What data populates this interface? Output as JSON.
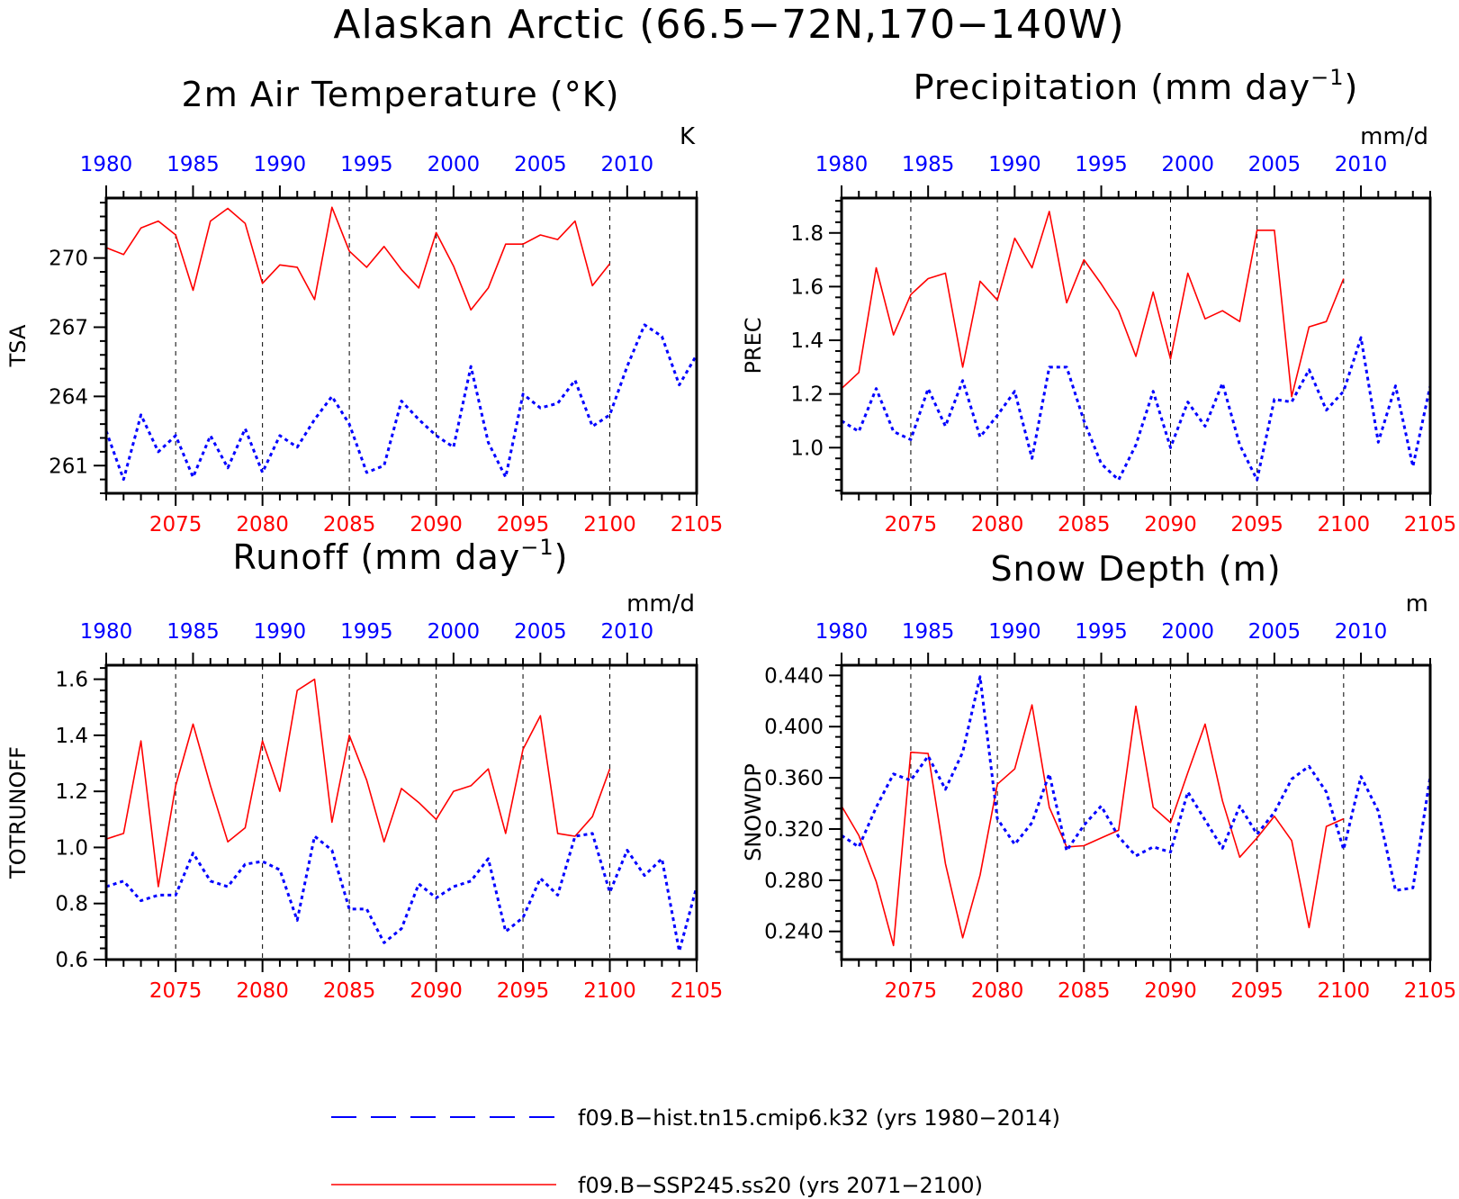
{
  "title": "Alaskan Arctic (66.5−72N,170−140W)",
  "legend": [
    {
      "label": "f09.B−hist.tn15.cmip6.k32 (yrs 1980−2014)",
      "color": "#0000ff",
      "style": "dashed"
    },
    {
      "label": "f09.B−SSP245.ss20 (yrs 2071−2100)",
      "color": "#ff0000",
      "style": "solid"
    }
  ],
  "colors": {
    "hist": "#0000ff",
    "ssp": "#ff0000",
    "axis": "#000000"
  },
  "chart_data": [
    {
      "type": "line",
      "title_main": "2m Air Temperature (°K)",
      "units": "K",
      "ylabel": "TSA",
      "ylim": [
        259.8,
        272.6
      ],
      "yticks": [
        261,
        264,
        267,
        270
      ],
      "ytick_labels": [
        "261",
        "264",
        "267",
        "270"
      ],
      "bottom_axis": {
        "range": [
          2071,
          2105
        ],
        "ticks": [
          2075,
          2080,
          2085,
          2090,
          2095,
          2100,
          2105
        ]
      },
      "top_axis": {
        "range": [
          1980,
          2014
        ],
        "ticks": [
          1980,
          1985,
          1990,
          1995,
          2000,
          2005,
          2010
        ]
      },
      "vlines": [
        2075,
        2080,
        2085,
        2090,
        2095,
        2100
      ],
      "series": [
        {
          "name": "f09.B−SSP245.ss20 (yrs 2071−2100)",
          "x_start": 2071,
          "color": "#ff0000",
          "values": [
            270.45,
            270.15,
            271.3,
            271.6,
            271.0,
            268.6,
            271.6,
            272.15,
            271.5,
            268.9,
            269.7,
            269.6,
            268.2,
            272.2,
            270.3,
            269.6,
            270.5,
            269.5,
            268.7,
            271.1,
            269.65,
            267.75,
            268.7,
            270.6,
            270.6,
            271.0,
            270.8,
            271.6,
            268.8,
            269.75
          ]
        },
        {
          "name": "f09.B−hist.tn15.cmip6.k32 (yrs 1980−2014)",
          "x_start": 2071,
          "color": "#0000ff",
          "values": [
            262.5,
            260.4,
            263.2,
            261.6,
            262.3,
            260.5,
            262.3,
            260.9,
            262.6,
            260.7,
            262.3,
            261.8,
            263.0,
            264.0,
            262.8,
            260.7,
            261.0,
            263.8,
            263.0,
            262.3,
            261.8,
            265.3,
            262.0,
            260.5,
            264.1,
            263.5,
            263.7,
            264.7,
            262.7,
            263.2,
            265.3,
            267.1,
            266.6,
            264.5,
            265.8
          ]
        }
      ]
    },
    {
      "type": "line",
      "title_main": "Precipitation (mm day",
      "title_sup": "−1",
      "title_end": ")",
      "units": "mm/d",
      "ylabel": "PREC",
      "ylim": [
        0.83,
        1.93
      ],
      "yticks": [
        1.0,
        1.2,
        1.4,
        1.6,
        1.8
      ],
      "ytick_labels": [
        "1.0",
        "1.2",
        "1.4",
        "1.6",
        "1.8"
      ],
      "bottom_axis": {
        "range": [
          2071,
          2105
        ],
        "ticks": [
          2075,
          2080,
          2085,
          2090,
          2095,
          2100,
          2105
        ]
      },
      "top_axis": {
        "range": [
          1980,
          2014
        ],
        "ticks": [
          1980,
          1985,
          1990,
          1995,
          2000,
          2005,
          2010
        ]
      },
      "vlines": [
        2075,
        2080,
        2085,
        2090,
        2095,
        2100
      ],
      "series": [
        {
          "name": "f09.B−SSP245.ss20 (yrs 2071−2100)",
          "x_start": 2071,
          "color": "#ff0000",
          "values": [
            1.22,
            1.28,
            1.67,
            1.42,
            1.57,
            1.63,
            1.65,
            1.3,
            1.62,
            1.55,
            1.78,
            1.67,
            1.88,
            1.54,
            1.7,
            1.61,
            1.51,
            1.34,
            1.58,
            1.33,
            1.65,
            1.48,
            1.51,
            1.47,
            1.81,
            1.81,
            1.19,
            1.45,
            1.47,
            1.63
          ]
        },
        {
          "name": "f09.B−hist.tn15.cmip6.k32 (yrs 1980−2014)",
          "x_start": 2071,
          "color": "#0000ff",
          "values": [
            1.1,
            1.06,
            1.22,
            1.06,
            1.03,
            1.22,
            1.08,
            1.25,
            1.04,
            1.12,
            1.21,
            0.96,
            1.3,
            1.3,
            1.1,
            0.94,
            0.88,
            1.01,
            1.21,
            1.0,
            1.17,
            1.08,
            1.24,
            1.01,
            0.88,
            1.18,
            1.17,
            1.29,
            1.14,
            1.21,
            1.41,
            1.02,
            1.23,
            0.93,
            1.23
          ]
        }
      ]
    },
    {
      "type": "line",
      "title_main": "Runoff (mm day",
      "title_sup": "−1",
      "title_end": ")",
      "units": "mm/d",
      "ylabel": "TOTRUNOFF",
      "ylim": [
        0.6,
        1.65
      ],
      "yticks": [
        0.6,
        0.8,
        1.0,
        1.2,
        1.4,
        1.6
      ],
      "ytick_labels": [
        "0.6",
        "0.8",
        "1.0",
        "1.2",
        "1.4",
        "1.6"
      ],
      "bottom_axis": {
        "range": [
          2071,
          2105
        ],
        "ticks": [
          2075,
          2080,
          2085,
          2090,
          2095,
          2100,
          2105
        ]
      },
      "top_axis": {
        "range": [
          1980,
          2014
        ],
        "ticks": [
          1980,
          1985,
          1990,
          1995,
          2000,
          2005,
          2010
        ]
      },
      "vlines": [
        2075,
        2080,
        2085,
        2090,
        2095,
        2100
      ],
      "series": [
        {
          "name": "f09.B−SSP245.ss20 (yrs 2071−2100)",
          "x_start": 2071,
          "color": "#ff0000",
          "values": [
            1.03,
            1.05,
            1.38,
            0.86,
            1.22,
            1.44,
            1.22,
            1.02,
            1.07,
            1.38,
            1.2,
            1.56,
            1.6,
            1.09,
            1.4,
            1.24,
            1.02,
            1.21,
            1.16,
            1.1,
            1.2,
            1.22,
            1.28,
            1.05,
            1.35,
            1.47,
            1.05,
            1.04,
            1.11,
            1.28
          ]
        },
        {
          "name": "f09.B−hist.tn15.cmip6.k32 (yrs 1980−2014)",
          "x_start": 2071,
          "color": "#0000ff",
          "values": [
            0.86,
            0.88,
            0.81,
            0.83,
            0.83,
            0.98,
            0.88,
            0.86,
            0.94,
            0.95,
            0.92,
            0.74,
            1.04,
            0.99,
            0.78,
            0.78,
            0.66,
            0.71,
            0.87,
            0.82,
            0.86,
            0.88,
            0.96,
            0.7,
            0.75,
            0.89,
            0.83,
            1.04,
            1.05,
            0.84,
            0.99,
            0.9,
            0.96,
            0.63,
            0.86
          ]
        }
      ]
    },
    {
      "type": "line",
      "title_main": "Snow Depth (m)",
      "units": "m",
      "ylabel": "SNOWDP",
      "ylim": [
        0.218,
        0.448
      ],
      "yticks": [
        0.24,
        0.28,
        0.32,
        0.36,
        0.4,
        0.44
      ],
      "ytick_labels": [
        "0.240",
        "0.280",
        "0.320",
        "0.360",
        "0.400",
        "0.440"
      ],
      "bottom_axis": {
        "range": [
          2071,
          2105
        ],
        "ticks": [
          2075,
          2080,
          2085,
          2090,
          2095,
          2100,
          2105
        ]
      },
      "top_axis": {
        "range": [
          1980,
          2014
        ],
        "ticks": [
          1980,
          1985,
          1990,
          1995,
          2000,
          2005,
          2010
        ]
      },
      "vlines": [
        2075,
        2080,
        2085,
        2090,
        2095,
        2100
      ],
      "series": [
        {
          "name": "f09.B−SSP245.ss20 (yrs 2071−2100)",
          "x_start": 2071,
          "color": "#ff0000",
          "values": [
            0.338,
            0.315,
            0.279,
            0.229,
            0.38,
            0.379,
            0.293,
            0.235,
            0.284,
            0.355,
            0.367,
            0.417,
            0.337,
            0.306,
            0.307,
            0.313,
            0.319,
            0.416,
            0.337,
            0.325,
            0.364,
            0.402,
            0.342,
            0.298,
            0.313,
            0.33,
            0.311,
            0.243,
            0.322,
            0.328
          ]
        },
        {
          "name": "f09.B−hist.tn15.cmip6.k32 (yrs 1980−2014)",
          "x_start": 2071,
          "color": "#0000ff",
          "values": [
            0.315,
            0.306,
            0.337,
            0.363,
            0.358,
            0.377,
            0.351,
            0.38,
            0.439,
            0.328,
            0.308,
            0.325,
            0.363,
            0.303,
            0.323,
            0.338,
            0.314,
            0.299,
            0.306,
            0.302,
            0.349,
            0.327,
            0.305,
            0.338,
            0.316,
            0.333,
            0.359,
            0.369,
            0.349,
            0.304,
            0.361,
            0.334,
            0.272,
            0.274,
            0.361
          ]
        }
      ]
    }
  ]
}
